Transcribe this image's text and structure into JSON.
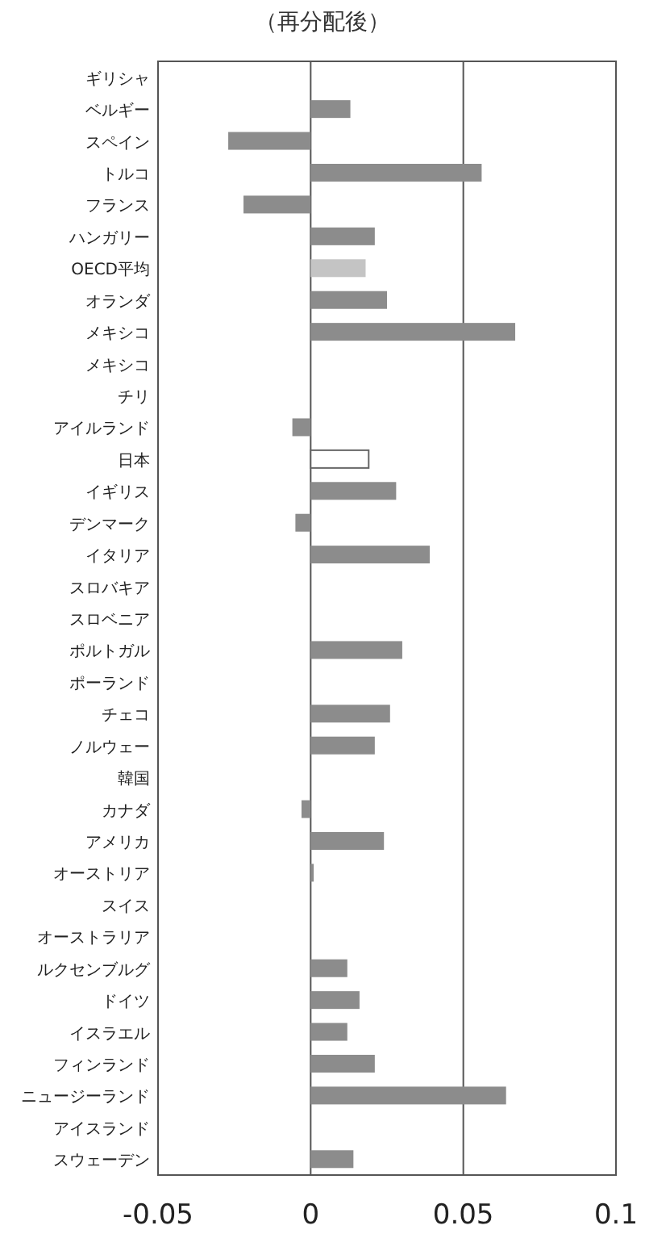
{
  "chart_data": {
    "type": "bar",
    "orientation": "horizontal",
    "title": "（再分配後）",
    "categories": [
      "ギリシャ",
      "ベルギー",
      "スペイン",
      "トルコ",
      "フランス",
      "ハンガリー",
      "OECD平均",
      "オランダ",
      "メキシコ",
      "メキシコ",
      "チリ",
      "アイルランド",
      "日本",
      "イギリス",
      "デンマーク",
      "イタリア",
      "スロバキア",
      "スロベニア",
      "ポルトガル",
      "ポーランド",
      "チェコ",
      "ノルウェー",
      "韓国",
      "カナダ",
      "アメリカ",
      "オーストリア",
      "スイス",
      "オーストラリア",
      "ルクセンブルグ",
      "ドイツ",
      "イスラエル",
      "フィンランド",
      "ニュージーランド",
      "アイスランド",
      "スウェーデン"
    ],
    "values": [
      null,
      0.013,
      -0.027,
      0.056,
      -0.022,
      0.021,
      0.018,
      0.025,
      0.067,
      null,
      null,
      -0.006,
      0.019,
      0.028,
      -0.005,
      0.039,
      null,
      null,
      0.03,
      null,
      0.026,
      0.021,
      null,
      -0.003,
      0.024,
      0.001,
      null,
      null,
      0.012,
      0.016,
      0.012,
      0.021,
      0.064,
      null,
      0.014
    ],
    "colors": [
      null,
      "#8c8c8c",
      "#8c8c8c",
      "#8c8c8c",
      "#8c8c8c",
      "#8c8c8c",
      "#c4c4c4",
      "#8c8c8c",
      "#8c8c8c",
      null,
      null,
      "#8c8c8c",
      "#ffffff",
      "#8c8c8c",
      "#8c8c8c",
      "#8c8c8c",
      null,
      null,
      "#8c8c8c",
      null,
      "#8c8c8c",
      "#8c8c8c",
      null,
      "#8c8c8c",
      "#8c8c8c",
      "#8c8c8c",
      null,
      null,
      "#8c8c8c",
      "#8c8c8c",
      "#8c8c8c",
      "#8c8c8c",
      "#8c8c8c",
      null,
      "#8c8c8c"
    ],
    "xlim": [
      -0.05,
      0.1
    ],
    "xticks": [
      -0.05,
      0,
      0.05,
      0.1
    ],
    "grid": "x"
  }
}
